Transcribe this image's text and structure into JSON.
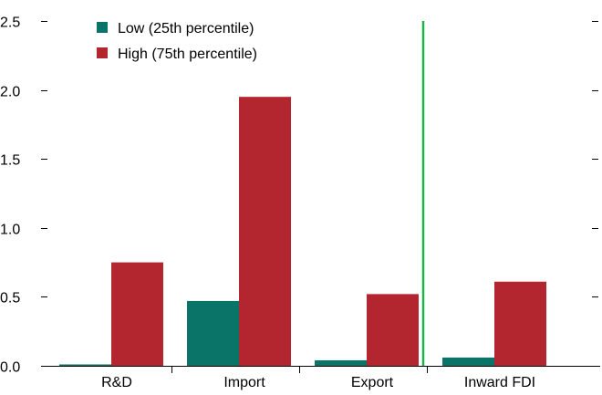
{
  "chart_data": {
    "type": "bar",
    "title": "",
    "xlabel": "",
    "ylabel": "",
    "categories": [
      "R&D",
      "Import",
      "Export",
      "Inward FDI"
    ],
    "series": [
      {
        "name": "Low (25th percentile)",
        "color": "#0b7468",
        "values": [
          0.01,
          0.47,
          0.04,
          0.06
        ]
      },
      {
        "name": "High (75th percentile)",
        "color": "#b32630",
        "values": [
          0.75,
          1.95,
          0.52,
          0.61
        ]
      }
    ],
    "ylim": [
      0,
      2.5
    ],
    "yticks": [
      "0.0",
      "0.5",
      "1.0",
      "1.5",
      "2.0",
      "2.5"
    ],
    "legend_position": "top-left",
    "separator_after_category": "Export",
    "separator_color": "#1db34a",
    "grid": false
  }
}
